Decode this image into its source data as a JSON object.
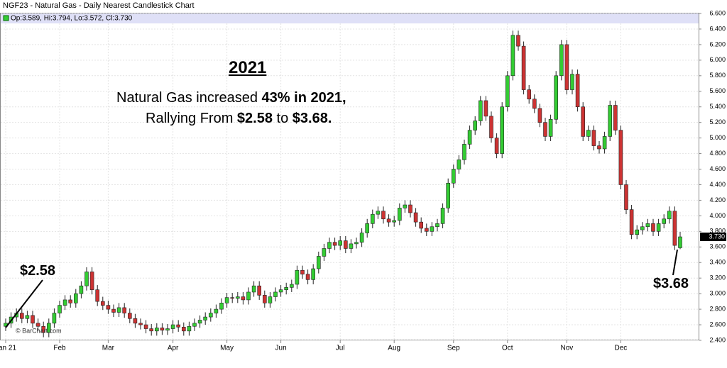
{
  "chart_data": {
    "type": "candlestick",
    "title": "NGF23 - Natural Gas - Daily Nearest Candlestick Chart",
    "legend_text": "Op:3.589, Hi:3.794, Lo:3.572, Cl:3.730",
    "last_label": "3.730",
    "credit": "© BarChart.com",
    "up_color": "#33cc33",
    "down_color": "#cc3333",
    "grid": true,
    "ylim": [
      2.4,
      6.6
    ],
    "yticks": [
      {
        "value": 2.4,
        "label": "2.400"
      },
      {
        "value": 2.6,
        "label": "2.600"
      },
      {
        "value": 2.8,
        "label": "2.800"
      },
      {
        "value": 3.0,
        "label": "3.000"
      },
      {
        "value": 3.2,
        "label": "3.200"
      },
      {
        "value": 3.4,
        "label": "3.400"
      },
      {
        "value": 3.6,
        "label": "3.600"
      },
      {
        "value": 3.8,
        "label": "3.800"
      },
      {
        "value": 4.0,
        "label": "4.000"
      },
      {
        "value": 4.2,
        "label": "4.200"
      },
      {
        "value": 4.4,
        "label": "4.400"
      },
      {
        "value": 4.6,
        "label": "4.600"
      },
      {
        "value": 4.8,
        "label": "4.800"
      },
      {
        "value": 5.0,
        "label": "5.000"
      },
      {
        "value": 5.2,
        "label": "5.200"
      },
      {
        "value": 5.4,
        "label": "5.400"
      },
      {
        "value": 5.6,
        "label": "5.600"
      },
      {
        "value": 5.8,
        "label": "5.800"
      },
      {
        "value": 6.0,
        "label": "6.000"
      },
      {
        "value": 6.2,
        "label": "6.200"
      },
      {
        "value": 6.4,
        "label": "6.400"
      },
      {
        "value": 6.6,
        "label": "6.600"
      }
    ],
    "xticks": [
      {
        "value": 0,
        "label": "Jan 21"
      },
      {
        "value": 10,
        "label": "Feb"
      },
      {
        "value": 19,
        "label": "Mar"
      },
      {
        "value": 31,
        "label": "Apr"
      },
      {
        "value": 41,
        "label": "May"
      },
      {
        "value": 51,
        "label": "Jun"
      },
      {
        "value": 62,
        "label": "Jul"
      },
      {
        "value": 72,
        "label": "Aug"
      },
      {
        "value": 83,
        "label": "Sep"
      },
      {
        "value": 93,
        "label": "Oct"
      },
      {
        "value": 104,
        "label": "Nov"
      },
      {
        "value": 114,
        "label": "Dec"
      }
    ],
    "open": [
      2.58,
      2.62,
      2.7,
      2.75,
      2.68,
      2.72,
      2.62,
      2.58,
      2.5,
      2.62,
      2.75,
      2.85,
      2.92,
      2.88,
      3.0,
      3.1,
      3.28,
      3.05,
      2.9,
      2.85,
      2.8,
      2.76,
      2.82,
      2.75,
      2.68,
      2.62,
      2.6,
      2.55,
      2.52,
      2.56,
      2.53,
      2.55,
      2.6,
      2.57,
      2.52,
      2.58,
      2.62,
      2.66,
      2.7,
      2.75,
      2.8,
      2.88,
      2.95,
      2.94,
      2.96,
      2.92,
      3.02,
      3.1,
      2.98,
      2.88,
      2.96,
      3.02,
      3.05,
      3.08,
      3.12,
      3.3,
      3.25,
      3.18,
      3.32,
      3.48,
      3.58,
      3.66,
      3.62,
      3.68,
      3.58,
      3.64,
      3.66,
      3.78,
      3.9,
      4.02,
      4.06,
      3.96,
      3.92,
      3.94,
      4.1,
      4.14,
      4.04,
      3.92,
      3.84,
      3.8,
      3.86,
      3.9,
      4.1,
      4.42,
      4.6,
      4.72,
      4.92,
      5.1,
      5.22,
      5.48,
      5.28,
      5.0,
      4.8,
      5.4,
      5.8,
      6.32,
      6.18,
      5.62,
      5.5,
      5.38,
      5.2,
      5.02,
      5.24,
      5.8,
      6.2,
      5.62,
      5.82,
      5.4,
      5.02,
      5.1,
      4.9,
      4.86,
      5.02,
      5.42,
      5.1,
      4.4,
      4.08,
      3.76,
      3.82,
      3.86,
      3.9,
      3.8,
      3.9,
      3.96,
      4.06,
      3.589
    ],
    "high": [
      2.68,
      2.76,
      2.81,
      2.81,
      2.78,
      2.78,
      2.68,
      2.64,
      2.68,
      2.81,
      2.91,
      2.98,
      2.98,
      3.06,
      3.16,
      3.34,
      3.34,
      3.11,
      2.96,
      2.91,
      2.86,
      2.88,
      2.88,
      2.81,
      2.74,
      2.68,
      2.66,
      2.61,
      2.62,
      2.62,
      2.61,
      2.66,
      2.66,
      2.63,
      2.64,
      2.68,
      2.72,
      2.76,
      2.81,
      2.86,
      2.94,
      3.01,
      3.01,
      3.02,
      3.02,
      3.08,
      3.16,
      3.16,
      3.04,
      3.02,
      3.08,
      3.11,
      3.14,
      3.18,
      3.36,
      3.36,
      3.31,
      3.38,
      3.54,
      3.64,
      3.72,
      3.72,
      3.74,
      3.74,
      3.7,
      3.72,
      3.84,
      3.96,
      4.08,
      4.12,
      4.12,
      4.02,
      4.0,
      4.16,
      4.2,
      4.2,
      4.1,
      3.98,
      3.9,
      3.92,
      3.96,
      4.16,
      4.48,
      4.66,
      4.78,
      4.98,
      5.16,
      5.28,
      5.54,
      5.54,
      5.34,
      5.06,
      5.46,
      5.86,
      6.38,
      6.38,
      6.24,
      5.68,
      5.56,
      5.44,
      5.26,
      5.3,
      5.86,
      6.26,
      6.26,
      5.88,
      5.88,
      5.46,
      5.16,
      5.16,
      4.96,
      5.08,
      5.48,
      5.48,
      5.16,
      4.46,
      4.14,
      3.88,
      3.92,
      3.96,
      3.96,
      3.96,
      4.02,
      4.12,
      4.12,
      3.794
    ],
    "low": [
      2.52,
      2.56,
      2.64,
      2.62,
      2.62,
      2.56,
      2.52,
      2.44,
      2.44,
      2.56,
      2.69,
      2.79,
      2.82,
      2.82,
      2.94,
      3.04,
      2.99,
      2.84,
      2.79,
      2.74,
      2.7,
      2.7,
      2.69,
      2.62,
      2.56,
      2.54,
      2.49,
      2.46,
      2.46,
      2.47,
      2.47,
      2.49,
      2.51,
      2.46,
      2.46,
      2.52,
      2.56,
      2.6,
      2.64,
      2.69,
      2.74,
      2.82,
      2.88,
      2.88,
      2.86,
      2.86,
      2.96,
      2.92,
      2.82,
      2.82,
      2.9,
      2.96,
      2.99,
      3.02,
      3.06,
      3.19,
      3.12,
      3.12,
      3.26,
      3.42,
      3.52,
      3.56,
      3.56,
      3.52,
      3.52,
      3.58,
      3.6,
      3.72,
      3.84,
      3.96,
      3.9,
      3.86,
      3.86,
      3.88,
      4.04,
      3.98,
      3.86,
      3.78,
      3.74,
      3.74,
      3.8,
      3.84,
      4.04,
      4.36,
      4.54,
      4.66,
      4.86,
      5.04,
      5.16,
      5.22,
      4.94,
      4.74,
      4.74,
      5.34,
      5.74,
      6.12,
      5.56,
      5.44,
      5.32,
      5.14,
      4.96,
      4.96,
      5.18,
      5.74,
      5.56,
      5.56,
      5.34,
      4.96,
      4.96,
      4.84,
      4.8,
      4.8,
      4.96,
      5.04,
      4.34,
      4.02,
      3.7,
      3.7,
      3.76,
      3.8,
      3.74,
      3.74,
      3.84,
      3.9,
      3.56,
      3.572
    ],
    "close": [
      2.62,
      2.7,
      2.75,
      2.68,
      2.72,
      2.62,
      2.58,
      2.5,
      2.62,
      2.75,
      2.85,
      2.92,
      2.88,
      3.0,
      3.1,
      3.28,
      3.05,
      2.9,
      2.85,
      2.8,
      2.76,
      2.82,
      2.75,
      2.68,
      2.62,
      2.6,
      2.55,
      2.52,
      2.56,
      2.53,
      2.55,
      2.6,
      2.57,
      2.52,
      2.58,
      2.62,
      2.66,
      2.7,
      2.75,
      2.8,
      2.88,
      2.95,
      2.94,
      2.96,
      2.92,
      3.02,
      3.1,
      2.98,
      2.88,
      2.96,
      3.02,
      3.05,
      3.08,
      3.12,
      3.3,
      3.25,
      3.18,
      3.32,
      3.48,
      3.58,
      3.66,
      3.62,
      3.68,
      3.58,
      3.64,
      3.66,
      3.78,
      3.9,
      4.02,
      4.06,
      3.96,
      3.92,
      3.94,
      4.1,
      4.14,
      4.04,
      3.92,
      3.84,
      3.8,
      3.86,
      3.9,
      4.1,
      4.42,
      4.6,
      4.72,
      4.92,
      5.1,
      5.22,
      5.48,
      5.28,
      5.0,
      4.8,
      5.4,
      5.8,
      6.32,
      6.18,
      5.62,
      5.5,
      5.38,
      5.2,
      5.02,
      5.24,
      5.8,
      6.2,
      5.62,
      5.82,
      5.4,
      5.02,
      5.1,
      4.9,
      4.86,
      5.02,
      5.42,
      5.1,
      4.4,
      4.08,
      3.76,
      3.82,
      3.86,
      3.9,
      3.8,
      3.9,
      3.96,
      4.06,
      3.62,
      3.73
    ],
    "annotations": {
      "heading": "2021",
      "line1": [
        "Natural Gas increased",
        "43% in 2021,"
      ],
      "line2": [
        "Rallying From",
        "$2.58",
        "to",
        "$3.68."
      ],
      "start_label": "$2.58",
      "end_label": "$3.68"
    }
  }
}
